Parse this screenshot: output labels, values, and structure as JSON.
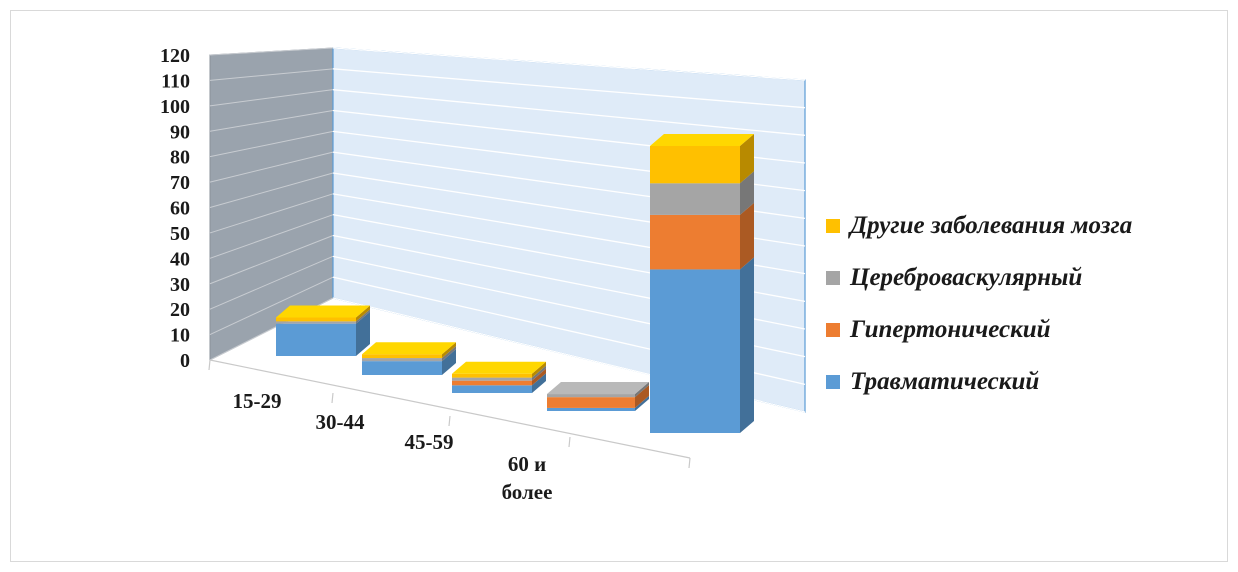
{
  "chart_data": {
    "type": "bar",
    "stacked": true,
    "three_d": true,
    "categories": [
      "15-29",
      "30-44",
      "45-59",
      "60 и более",
      ""
    ],
    "category_lines": [
      [
        "15-29"
      ],
      [
        "30-44"
      ],
      [
        "45-59"
      ],
      [
        "60 и",
        "более"
      ],
      []
    ],
    "series": [
      {
        "name": "Травматический",
        "color": "#5b9bd5",
        "values": [
          42,
          18,
          10,
          4,
          57
        ]
      },
      {
        "name": "Гипертонический",
        "color": "#ed7d31",
        "values": [
          0,
          0,
          6,
          14,
          19
        ]
      },
      {
        "name": "Цереброваскулярный",
        "color": "#a5a5a5",
        "values": [
          3,
          4,
          4,
          4,
          11
        ]
      },
      {
        "name": "Другие заболевания мозга",
        "color": "#ffc000",
        "values": [
          5,
          5,
          5,
          0,
          13
        ]
      }
    ],
    "yticks": [
      0,
      10,
      20,
      30,
      40,
      50,
      60,
      70,
      80,
      90,
      100,
      110,
      120
    ],
    "ylim": [
      0,
      120
    ],
    "grid": true,
    "legend_position": "right",
    "title": "",
    "xlabel": "",
    "ylabel": ""
  }
}
